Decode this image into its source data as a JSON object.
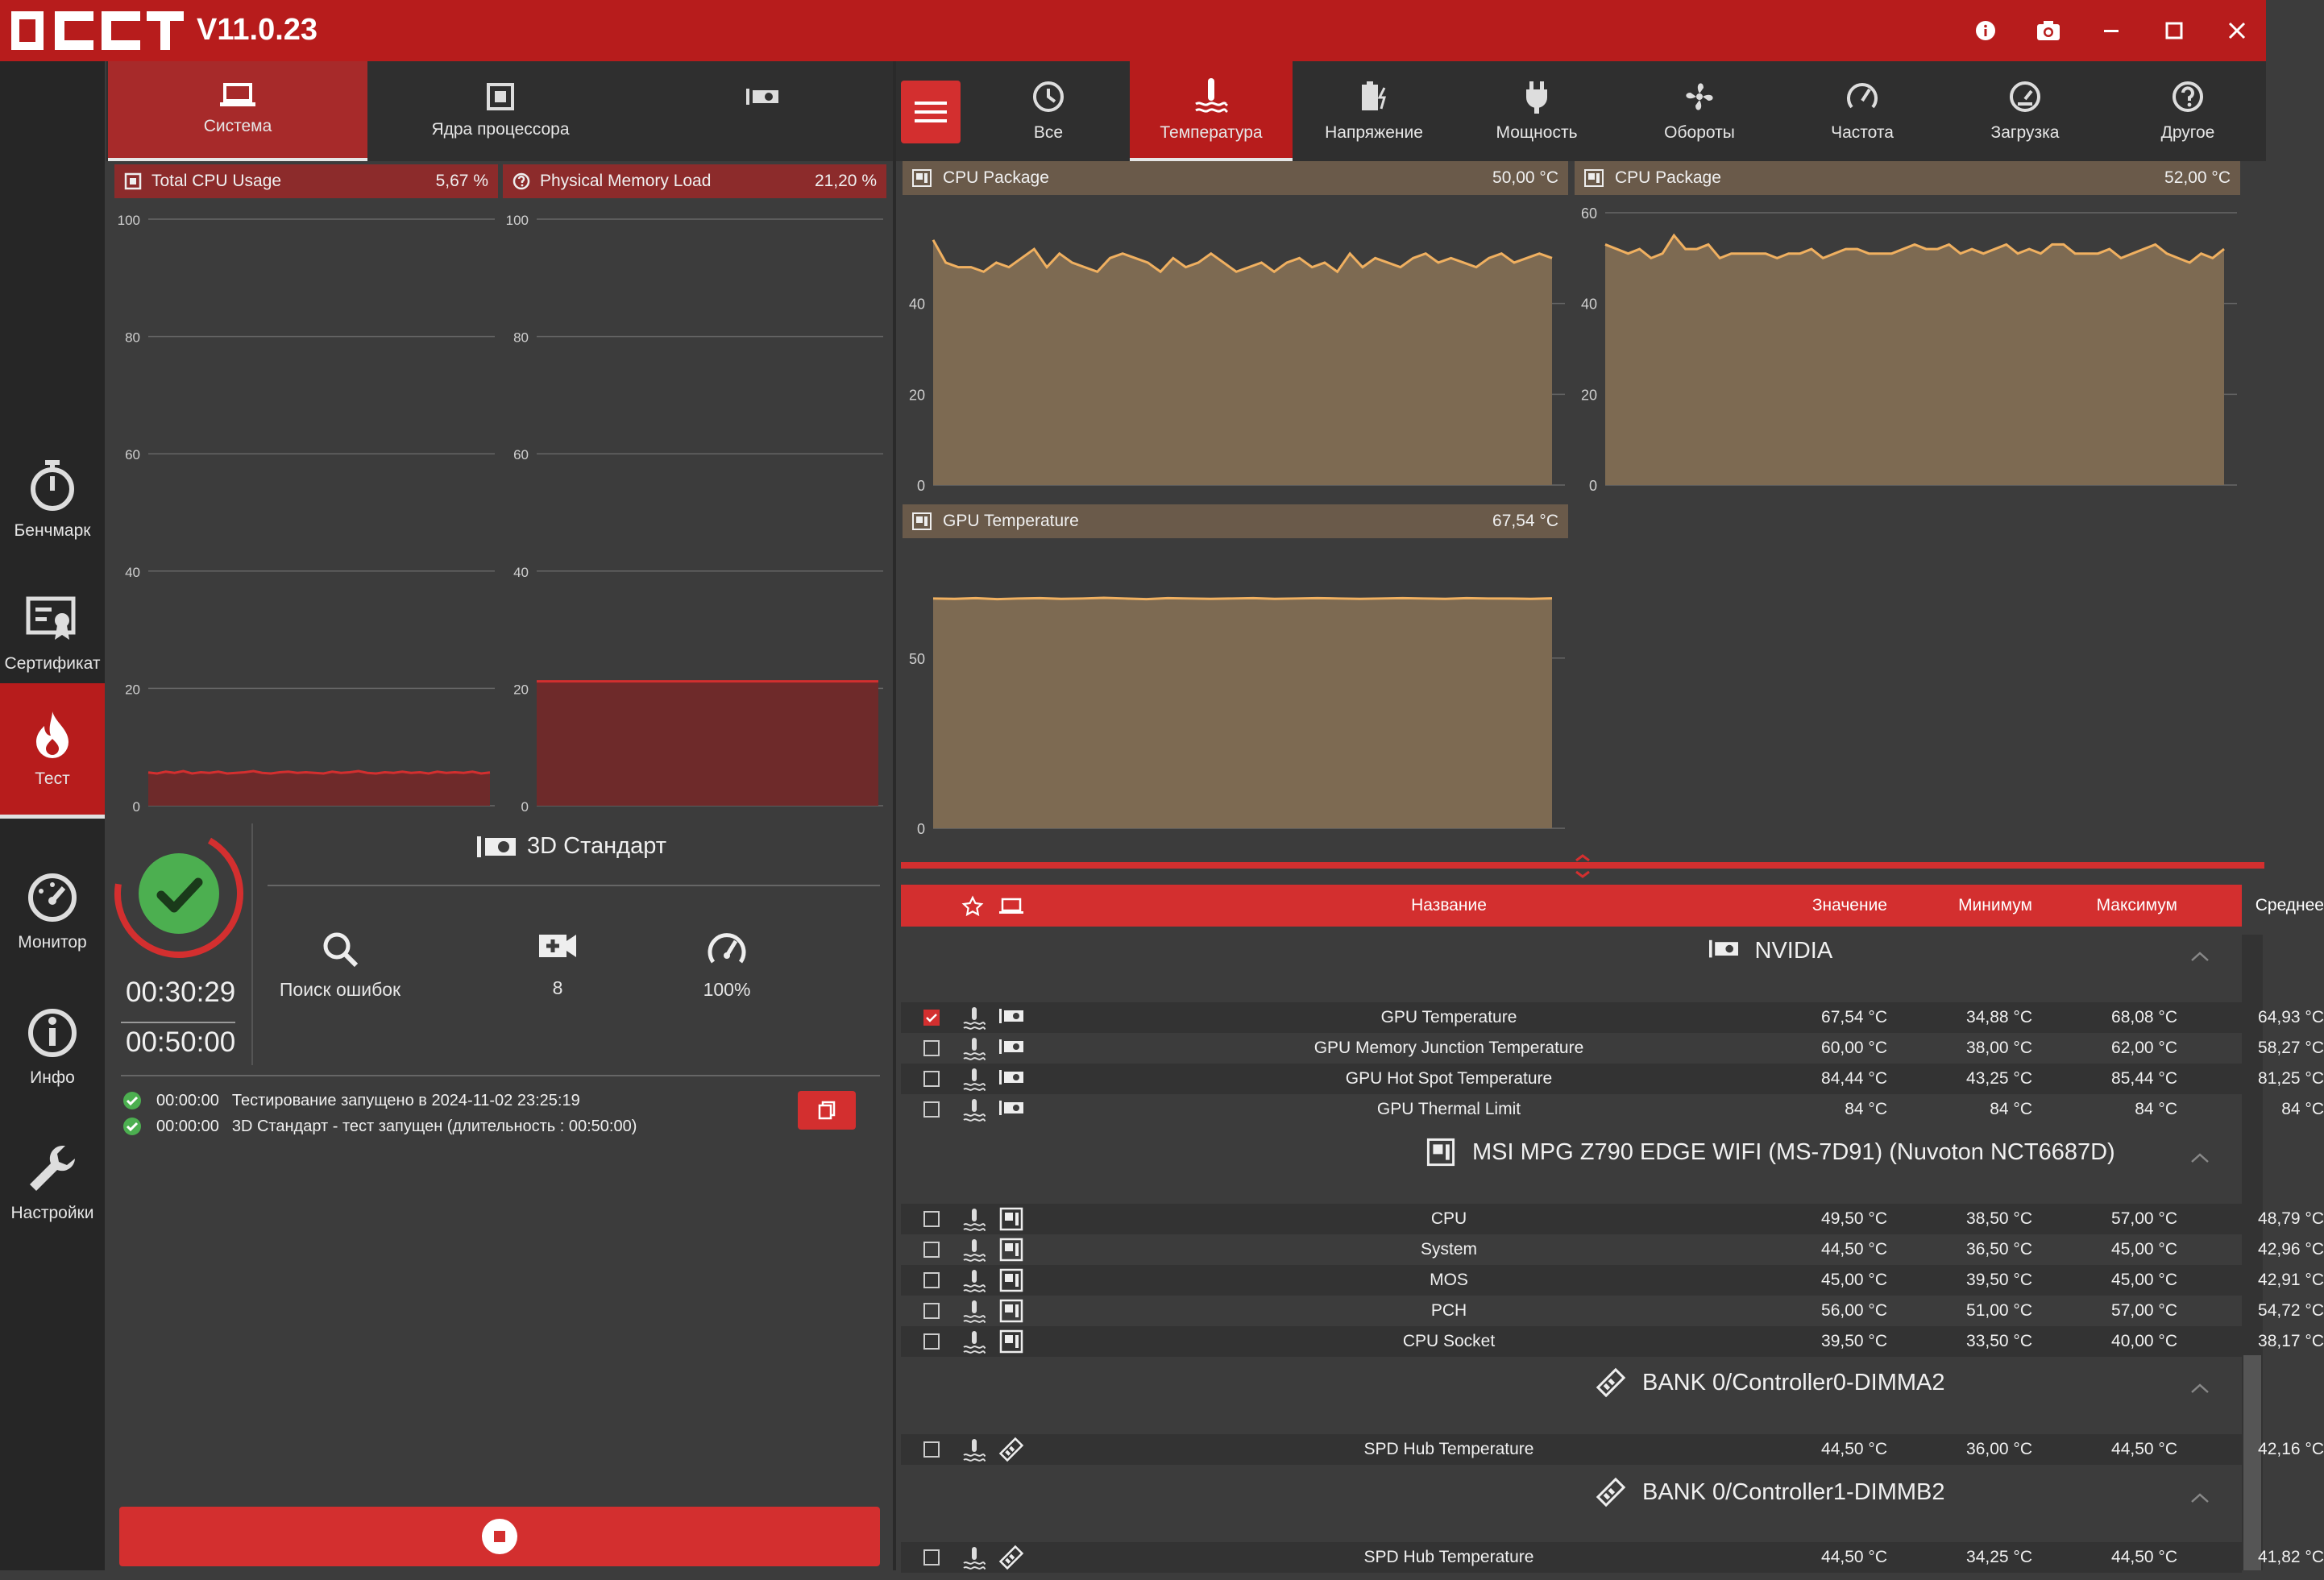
{
  "app": {
    "version": "V11.0.23",
    "logo_text": "OCCT"
  },
  "window_controls": [
    "info-icon",
    "camera-icon",
    "minimize-icon",
    "maximize-icon",
    "close-icon"
  ],
  "sidebar": {
    "items": [
      {
        "label": "Бенчмарк",
        "icon": "stopwatch-icon"
      },
      {
        "label": "Сертификат",
        "icon": "certificate-icon"
      },
      {
        "label": "Тест",
        "icon": "flame-icon",
        "active": true
      },
      {
        "label": "Монитор",
        "icon": "gauge-icon"
      },
      {
        "label": "Инфо",
        "icon": "info-icon"
      },
      {
        "label": "Настройки",
        "icon": "wrench-icon"
      }
    ]
  },
  "left_tabs": [
    {
      "label": "Система",
      "icon": "laptop-icon",
      "active": true
    },
    {
      "label": "Ядра процессора",
      "icon": "cpu-icon"
    },
    {
      "label": "",
      "icon": "gpu-card-icon"
    }
  ],
  "left_charts": [
    {
      "title": "Total CPU Usage",
      "value": "5,67 %"
    },
    {
      "title": "Physical Memory Load",
      "value": "21,20 %"
    }
  ],
  "test": {
    "name": "3D Стандарт",
    "elapsed": "00:30:29",
    "duration": "00:50:00",
    "options": [
      {
        "label": "Поиск ошибок",
        "icon": "search-icon"
      },
      {
        "label": "8",
        "icon": "video-add-icon"
      },
      {
        "label": "100%",
        "icon": "speedometer-icon"
      }
    ],
    "log": [
      {
        "time": "00:00:00",
        "text": "Тестирование запущено в 2024-11-02 23:25:19"
      },
      {
        "time": "00:00:00",
        "text": "3D Стандарт - тест запущен (длительность : 00:50:00)"
      }
    ]
  },
  "right_tabs": [
    {
      "label": "Все",
      "icon": "clock-icon"
    },
    {
      "label": "Температура",
      "icon": "thermometer-icon",
      "active": true
    },
    {
      "label": "Напряжение",
      "icon": "battery-icon"
    },
    {
      "label": "Мощность",
      "icon": "plug-icon"
    },
    {
      "label": "Обороты",
      "icon": "fan-icon"
    },
    {
      "label": "Частота",
      "icon": "frequency-icon"
    },
    {
      "label": "Загрузка",
      "icon": "load-icon"
    },
    {
      "label": "Другое",
      "icon": "question-icon"
    }
  ],
  "monitor_charts": [
    {
      "title": "CPU Package",
      "value": "50,00 °C"
    },
    {
      "title": "CPU Package",
      "value": "52,00 °C"
    },
    {
      "title": "GPU Temperature",
      "value": "67,54 °C"
    }
  ],
  "chart_data": [
    {
      "type": "area",
      "title": "Total CPU Usage",
      "ylim": [
        0,
        100
      ],
      "yticks": [
        0,
        20,
        40,
        60,
        80,
        100
      ],
      "values": [
        5.67,
        5.5,
        5.8,
        5.6,
        5.9,
        5.5,
        5.7,
        5.6,
        5.8,
        5.5,
        5.6,
        5.7,
        5.9,
        5.6,
        5.5,
        5.7,
        5.8,
        5.6,
        5.7,
        5.6,
        5.5,
        5.8,
        5.6,
        5.7,
        5.9,
        5.6,
        5.5,
        5.7,
        5.6,
        5.8,
        5.6,
        5.7,
        5.5,
        5.8,
        5.6,
        5.7,
        5.6,
        5.8,
        5.5,
        5.67
      ]
    },
    {
      "type": "area",
      "title": "Physical Memory Load",
      "ylim": [
        0,
        100
      ],
      "yticks": [
        0,
        20,
        40,
        60,
        80,
        100
      ],
      "values": [
        21.2,
        21.2,
        21.2,
        21.2,
        21.2,
        21.2,
        21.2,
        21.2,
        21.2,
        21.2,
        21.2,
        21.2,
        21.2,
        21.2,
        21.2,
        21.2,
        21.2,
        21.2,
        21.2,
        21.2
      ]
    },
    {
      "type": "area",
      "title": "CPU Package",
      "value": "50,00 °C",
      "ylim": [
        0,
        60
      ],
      "yticks": [
        0,
        20,
        40
      ],
      "values": [
        54,
        49,
        48,
        48,
        47,
        49,
        48,
        50,
        52,
        48,
        51,
        49,
        48,
        47,
        50,
        51,
        50,
        49,
        47,
        50,
        48,
        49,
        51,
        49,
        47,
        48,
        49,
        47,
        49,
        50,
        48,
        49,
        47,
        51,
        48,
        50,
        49,
        48,
        50,
        51,
        49,
        50,
        49,
        48,
        50,
        51,
        49,
        50,
        51,
        50
      ]
    },
    {
      "type": "area",
      "title": "CPU Package",
      "value": "52,00 °C",
      "ylim": [
        0,
        60
      ],
      "yticks": [
        0,
        20,
        40,
        60
      ],
      "values": [
        53,
        52,
        51,
        52,
        50,
        51,
        55,
        52,
        52,
        53,
        50,
        51,
        51,
        51,
        51,
        50,
        51,
        51,
        52,
        50,
        51,
        52,
        52,
        51,
        51,
        51,
        52,
        53,
        52,
        52,
        53,
        51,
        52,
        51,
        52,
        53,
        51,
        52,
        51,
        53,
        53,
        51,
        51,
        51,
        52,
        50,
        51,
        52,
        53,
        51,
        50,
        49,
        51,
        50,
        52
      ]
    },
    {
      "type": "area",
      "title": "GPU Temperature",
      "value": "67,54 °C",
      "ylim": [
        0,
        80
      ],
      "yticks": [
        0,
        50
      ],
      "values": [
        67.5,
        67.4,
        67.6,
        67.3,
        67.5,
        67.6,
        67.4,
        67.5,
        67.7,
        67.5,
        67.3,
        67.6,
        67.5,
        67.4,
        67.5,
        67.6,
        67.4,
        67.5,
        67.6,
        67.5,
        67.4,
        67.5,
        67.6,
        67.5,
        67.4,
        67.6,
        67.5,
        67.5,
        67.4,
        67.54
      ]
    }
  ],
  "table": {
    "headers": {
      "name": "Название",
      "value": "Значение",
      "min": "Минимум",
      "max": "Максимум",
      "avg": "Среднее"
    },
    "groups": [
      {
        "title": "NVIDIA",
        "icon": "gpu-card-icon",
        "device_icon": "gpu-card-icon",
        "rows": [
          {
            "name": "GPU Temperature",
            "value": "67,54 °C",
            "min": "34,88 °C",
            "max": "68,08 °C",
            "avg": "64,93 °C",
            "checked": true
          },
          {
            "name": "GPU Memory Junction Temperature",
            "value": "60,00 °C",
            "min": "38,00 °C",
            "max": "62,00 °C",
            "avg": "58,27 °C"
          },
          {
            "name": "GPU Hot Spot Temperature",
            "value": "84,44 °C",
            "min": "43,25 °C",
            "max": "85,44 °C",
            "avg": "81,25 °C"
          },
          {
            "name": "GPU Thermal Limit",
            "value": "84 °C",
            "min": "84 °C",
            "max": "84 °C",
            "avg": "84 °C"
          }
        ]
      },
      {
        "title": "MSI MPG Z790 EDGE WIFI (MS-7D91) (Nuvoton NCT6687D)",
        "icon": "motherboard-icon",
        "device_icon": "motherboard-icon",
        "rows": [
          {
            "name": "CPU",
            "value": "49,50 °C",
            "min": "38,50 °C",
            "max": "57,00 °C",
            "avg": "48,79 °C"
          },
          {
            "name": "System",
            "value": "44,50 °C",
            "min": "36,50 °C",
            "max": "45,00 °C",
            "avg": "42,96 °C"
          },
          {
            "name": "MOS",
            "value": "45,00 °C",
            "min": "39,50 °C",
            "max": "45,00 °C",
            "avg": "42,91 °C"
          },
          {
            "name": "PCH",
            "value": "56,00 °C",
            "min": "51,00 °C",
            "max": "57,00 °C",
            "avg": "54,72 °C"
          },
          {
            "name": "CPU Socket",
            "value": "39,50 °C",
            "min": "33,50 °C",
            "max": "40,00 °C",
            "avg": "38,17 °C"
          }
        ]
      },
      {
        "title": "BANK 0/Controller0-DIMMA2",
        "icon": "memory-stick-icon",
        "device_icon": "memory-stick-icon",
        "rows": [
          {
            "name": "SPD Hub Temperature",
            "value": "44,50 °C",
            "min": "36,00 °C",
            "max": "44,50 °C",
            "avg": "42,16 °C"
          }
        ]
      },
      {
        "title": "BANK 0/Controller1-DIMMB2",
        "icon": "memory-stick-icon",
        "device_icon": "memory-stick-icon",
        "rows": [
          {
            "name": "SPD Hub Temperature",
            "value": "44,50 °C",
            "min": "34,25 °C",
            "max": "44,50 °C",
            "avg": "41,82 °C"
          }
        ]
      }
    ]
  },
  "colors": {
    "accent": "#d32f2f",
    "titlebar": "#b71c1c",
    "cpu_area": "#6e2a2a",
    "temp_area": "#7d6a52",
    "temp_line": "#f0b060",
    "ok_green": "#4caf50"
  }
}
